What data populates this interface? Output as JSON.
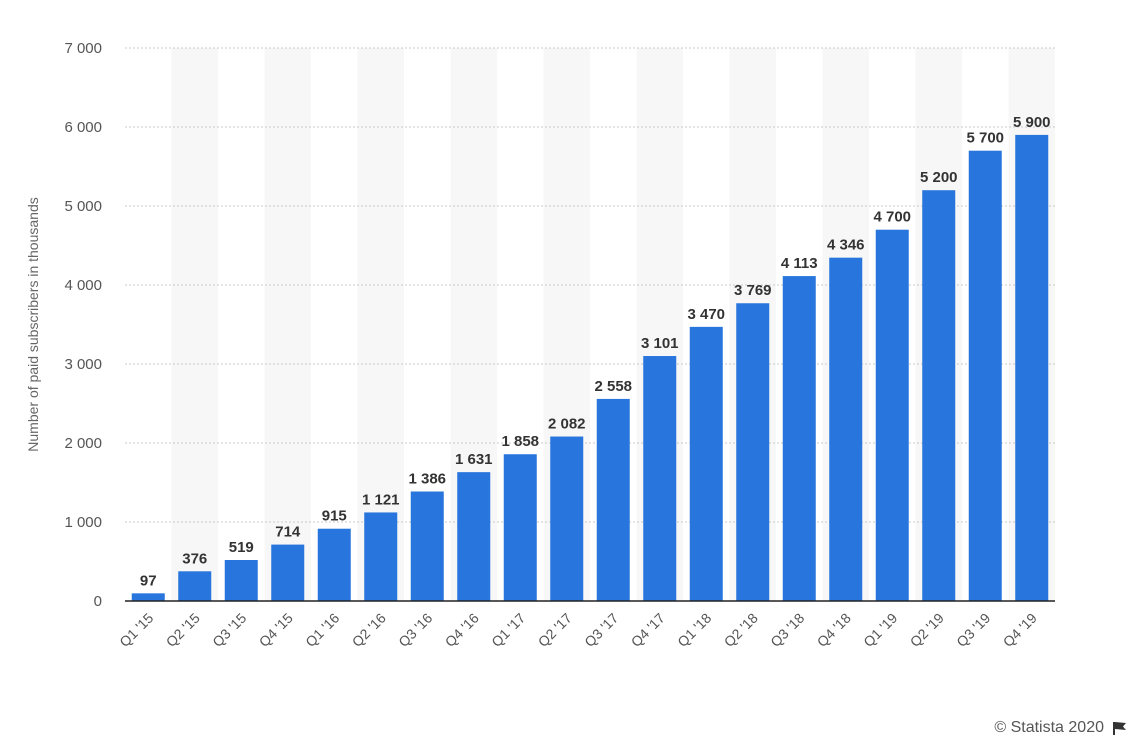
{
  "chart_data": {
    "type": "bar",
    "title": "",
    "xlabel": "",
    "ylabel": "Number of paid subscribers in thousands",
    "ylim": [
      0,
      7000
    ],
    "yticks": [
      0,
      1000,
      2000,
      3000,
      4000,
      5000,
      6000,
      7000
    ],
    "ytick_labels": [
      "0",
      "1 000",
      "2 000",
      "3 000",
      "4 000",
      "5 000",
      "6 000",
      "7 000"
    ],
    "categories": [
      "Q1 '15",
      "Q2 '15",
      "Q3 '15",
      "Q4 '15",
      "Q1 '16",
      "Q2 '16",
      "Q3 '16",
      "Q4 '16",
      "Q1 '17",
      "Q2 '17",
      "Q3 '17",
      "Q4 '17",
      "Q1 '18",
      "Q2 '18",
      "Q3 '18",
      "Q4 '18",
      "Q1 '19",
      "Q2 '19",
      "Q3 '19",
      "Q4 '19"
    ],
    "values": [
      97,
      376,
      519,
      714,
      915,
      1121,
      1386,
      1631,
      1858,
      2082,
      2558,
      3101,
      3470,
      3769,
      4113,
      4346,
      4700,
      5200,
      5700,
      5900
    ],
    "data_labels": [
      "97",
      "376",
      "519",
      "714",
      "915",
      "1 121",
      "1 386",
      "1 631",
      "1 858",
      "2 082",
      "2 558",
      "3 101",
      "3 470",
      "3 769",
      "4 113",
      "4 346",
      "4 700",
      "5 200",
      "5 700",
      "5 900"
    ],
    "grid": true,
    "bar_color": "#2876dd"
  },
  "credit": {
    "text": "© Statista 2020",
    "icon": "flag-icon"
  }
}
